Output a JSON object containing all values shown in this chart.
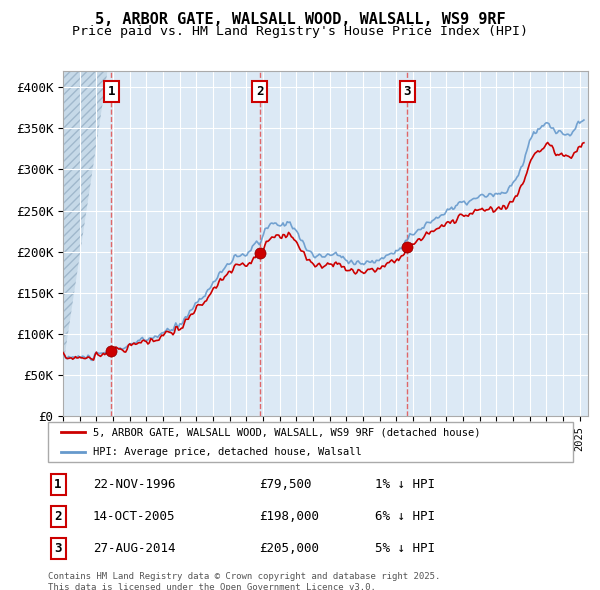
{
  "title1": "5, ARBOR GATE, WALSALL WOOD, WALSALL, WS9 9RF",
  "title2": "Price paid vs. HM Land Registry's House Price Index (HPI)",
  "legend_property": "5, ARBOR GATE, WALSALL WOOD, WALSALL, WS9 9RF (detached house)",
  "legend_hpi": "HPI: Average price, detached house, Walsall",
  "sale_points": [
    {
      "label": "1",
      "date_num": 1996.9,
      "price": 79500
    },
    {
      "label": "2",
      "date_num": 2005.8,
      "price": 198000
    },
    {
      "label": "3",
      "date_num": 2014.65,
      "price": 205000
    }
  ],
  "sale_info": [
    {
      "num": "1",
      "date": "22-NOV-1996",
      "price": "£79,500",
      "pct": "1% ↓ HPI"
    },
    {
      "num": "2",
      "date": "14-OCT-2005",
      "price": "£198,000",
      "pct": "6% ↓ HPI"
    },
    {
      "num": "3",
      "date": "27-AUG-2014",
      "price": "£205,000",
      "pct": "5% ↓ HPI"
    }
  ],
  "footer": "Contains HM Land Registry data © Crown copyright and database right 2025.\nThis data is licensed under the Open Government Licence v3.0.",
  "ylim": [
    0,
    420000
  ],
  "yticks": [
    0,
    50000,
    100000,
    150000,
    200000,
    250000,
    300000,
    350000,
    400000
  ],
  "ytick_labels": [
    "£0",
    "£50K",
    "£100K",
    "£150K",
    "£200K",
    "£250K",
    "£300K",
    "£350K",
    "£400K"
  ],
  "bg_color": "#dce9f5",
  "red_color": "#cc0000",
  "blue_color": "#6699cc",
  "dashed_color": "#e05050",
  "grid_color": "#ffffff",
  "hatch_color": "#b8cfe0"
}
